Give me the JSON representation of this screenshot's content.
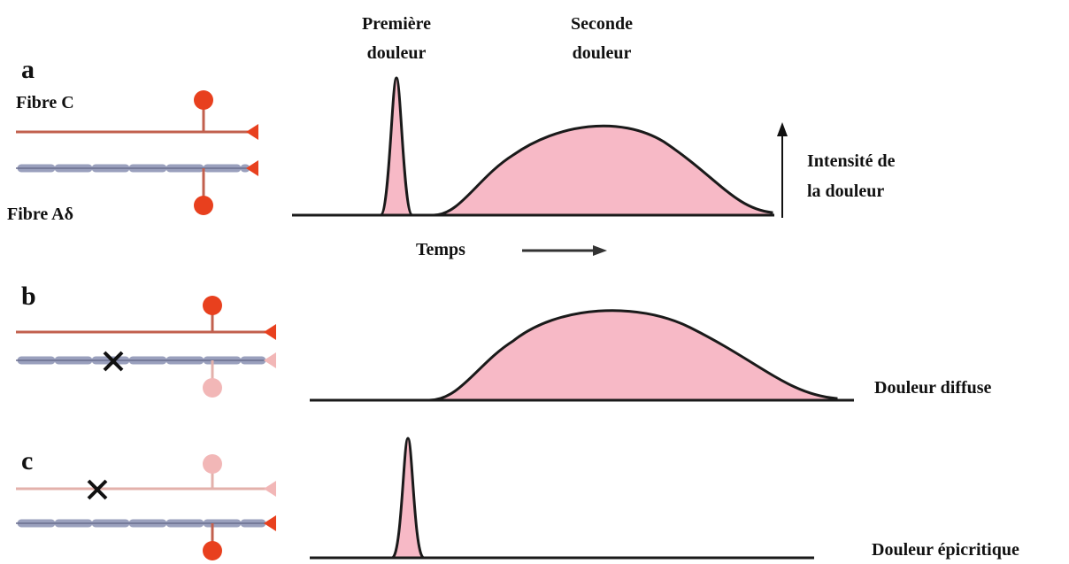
{
  "panel_a": {
    "letter": "a",
    "fibre_c": "Fibre C",
    "fibre_ad": "Fibre  Aδ",
    "first_pain": [
      "Première",
      "douleur"
    ],
    "second_pain": [
      "Seconde",
      "douleur"
    ],
    "y_axis": [
      "Intensité de",
      "la douleur"
    ],
    "x_axis": "Temps"
  },
  "panel_b": {
    "letter": "b",
    "caption": "Douleur diffuse"
  },
  "panel_c": {
    "letter": "c",
    "caption": "Douleur épicritique"
  }
}
